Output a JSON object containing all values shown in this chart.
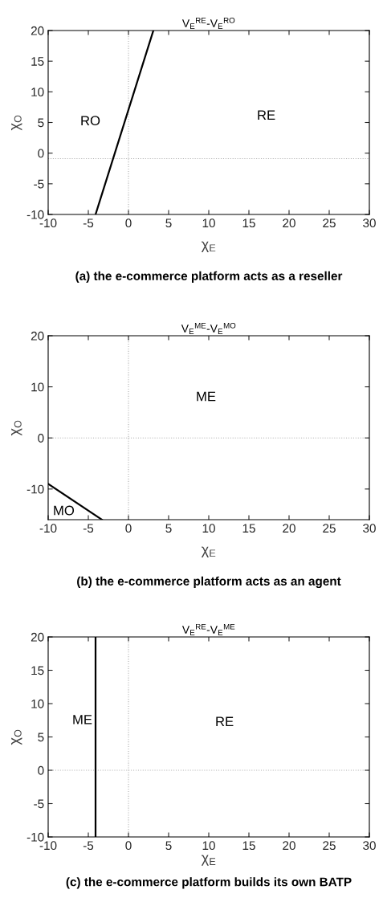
{
  "chart_data": [
    {
      "type": "line",
      "title": "V$_{E}$$^{RE}$-V$_{E}$$^{RO}$",
      "xlabel": "χ$_{E}$",
      "ylabel": "χ$_{O}$",
      "x": [
        -4.1,
        3.1
      ],
      "series": [
        {
          "color": "#000000",
          "values": [
            -10,
            20
          ]
        }
      ],
      "xlim": [
        -10,
        30
      ],
      "xticks": [
        -10,
        -5,
        0,
        5,
        10,
        15,
        20,
        25,
        30
      ],
      "ylim": [
        -10,
        20
      ],
      "yticks": [
        -10,
        -5,
        0,
        5,
        10,
        15,
        20
      ],
      "ref_lines": [
        {
          "axis": "x",
          "value": 0,
          "color": "#b0b0b0",
          "line_style": "dotted"
        },
        {
          "axis": "y",
          "value": -0.9,
          "color": "#b0b0b0",
          "line_style": "dotted"
        }
      ],
      "annotations": [
        "RO",
        "RE",
        "(a) the e-commerce platform acts as a reseller"
      ],
      "grid": false,
      "marker": "none",
      "line_style": "solid"
    },
    {
      "type": "line",
      "title": "V$_{E}$$^{ME}$-V$_{E}$$^{MO}$",
      "xlabel": "χ$_{E}$",
      "ylabel": "χ$_{O}$",
      "x": [
        -10,
        -3.3
      ],
      "series": [
        {
          "color": "#000000",
          "values": [
            -9,
            -16
          ]
        }
      ],
      "xlim": [
        -10,
        30
      ],
      "xticks": [
        -10,
        -5,
        0,
        5,
        10,
        15,
        20,
        25,
        30
      ],
      "ylim": [
        -16,
        20
      ],
      "yticks": [
        -10,
        0,
        10,
        20
      ],
      "ref_lines": [
        {
          "axis": "x",
          "value": 0,
          "color": "#b0b0b0",
          "line_style": "dotted"
        },
        {
          "axis": "y",
          "value": 0,
          "color": "#b0b0b0",
          "line_style": "dotted"
        }
      ],
      "annotations": [
        "ME",
        "MO",
        "(b) the e-commerce platform acts as an agent"
      ],
      "grid": false,
      "marker": "none",
      "line_style": "solid"
    },
    {
      "type": "line",
      "title": "V$_{E}$$^{RE}$-V$_{E}$$^{ME}$",
      "xlabel": "χ$_{E}$",
      "ylabel": "χ$_{O}$",
      "x": [
        -4.1,
        -4.1
      ],
      "series": [
        {
          "color": "#000000",
          "values": [
            -10,
            20
          ]
        }
      ],
      "xlim": [
        -10,
        30
      ],
      "xticks": [
        -10,
        -5,
        0,
        5,
        10,
        15,
        20,
        25,
        30
      ],
      "ylim": [
        -10,
        20
      ],
      "yticks": [
        -10,
        -5,
        0,
        5,
        10,
        15,
        20
      ],
      "ref_lines": [
        {
          "axis": "x",
          "value": 0,
          "color": "#b0b0b0",
          "line_style": "dotted"
        },
        {
          "axis": "y",
          "value": 0,
          "color": "#b0b0b0",
          "line_style": "dotted"
        }
      ],
      "annotations": [
        "ME",
        "RE",
        "(c) the e-commerce platform builds its own BATP"
      ],
      "grid": false,
      "marker": "none",
      "line_style": "solid"
    }
  ]
}
